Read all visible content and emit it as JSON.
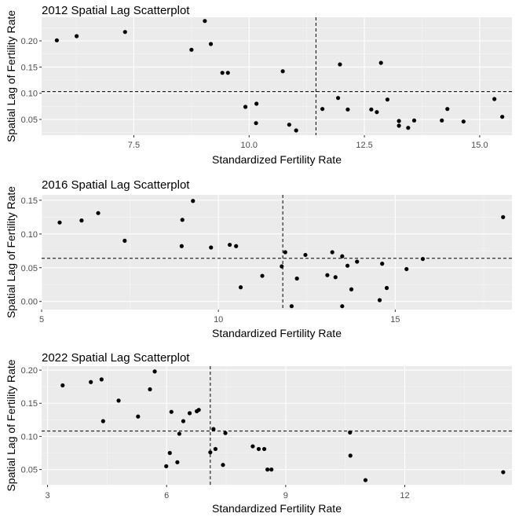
{
  "colors": {
    "panel_bg": "#ebebeb",
    "grid_major": "#ffffff",
    "grid_minor": "#f5f5f5",
    "point": "#000000",
    "ref_line": "#000000",
    "text": "#000000",
    "tick_text": "#4d4d4d"
  },
  "chart_data": [
    {
      "type": "scatter",
      "title": "2012 Spatial Lag Scatterplot",
      "xlabel": "Standardized Fertility Rate",
      "ylabel": "Spatial Lag of Fertility Rate",
      "xlim": [
        5.5,
        15.7
      ],
      "ylim": [
        0.02,
        0.245
      ],
      "xticks": [
        7.5,
        10.0,
        12.5,
        15.0
      ],
      "xtick_labels": [
        "7.5",
        "10.0",
        "12.5",
        "15.0"
      ],
      "yticks": [
        0.05,
        0.1,
        0.15,
        0.2
      ],
      "ytick_labels": [
        "0.05",
        "0.10",
        "0.15",
        "0.20"
      ],
      "vline": 11.45,
      "hline": 0.103,
      "grid": true,
      "points": [
        {
          "x": 5.83,
          "y": 0.201
        },
        {
          "x": 6.26,
          "y": 0.209
        },
        {
          "x": 7.31,
          "y": 0.217
        },
        {
          "x": 8.75,
          "y": 0.183
        },
        {
          "x": 9.04,
          "y": 0.238
        },
        {
          "x": 9.17,
          "y": 0.194
        },
        {
          "x": 9.42,
          "y": 0.139
        },
        {
          "x": 9.54,
          "y": 0.139
        },
        {
          "x": 9.92,
          "y": 0.074
        },
        {
          "x": 10.16,
          "y": 0.08
        },
        {
          "x": 10.15,
          "y": 0.043
        },
        {
          "x": 10.73,
          "y": 0.142
        },
        {
          "x": 10.87,
          "y": 0.04
        },
        {
          "x": 11.02,
          "y": 0.029
        },
        {
          "x": 11.59,
          "y": 0.07
        },
        {
          "x": 11.93,
          "y": 0.091
        },
        {
          "x": 11.97,
          "y": 0.155
        },
        {
          "x": 12.14,
          "y": 0.069
        },
        {
          "x": 12.65,
          "y": 0.069
        },
        {
          "x": 12.77,
          "y": 0.064
        },
        {
          "x": 12.86,
          "y": 0.158
        },
        {
          "x": 13.0,
          "y": 0.088
        },
        {
          "x": 13.25,
          "y": 0.047
        },
        {
          "x": 13.25,
          "y": 0.038
        },
        {
          "x": 13.45,
          "y": 0.034
        },
        {
          "x": 13.58,
          "y": 0.048
        },
        {
          "x": 14.18,
          "y": 0.048
        },
        {
          "x": 14.3,
          "y": 0.07
        },
        {
          "x": 14.65,
          "y": 0.046
        },
        {
          "x": 15.32,
          "y": 0.089
        },
        {
          "x": 15.49,
          "y": 0.055
        }
      ]
    },
    {
      "type": "scatter",
      "title": "2016 Spatial Lag Scatterplot",
      "xlabel": "Standardized Fertility Rate",
      "ylabel": "Spatial Lag of Fertility Rate",
      "xlim": [
        5.0,
        18.3
      ],
      "ylim": [
        -0.012,
        0.158
      ],
      "xticks": [
        5,
        10,
        15
      ],
      "xtick_labels": [
        "5",
        "10",
        "15"
      ],
      "yticks": [
        0.0,
        0.05,
        0.1,
        0.15
      ],
      "ytick_labels": [
        "0.00",
        "0.05",
        "0.10",
        "0.15"
      ],
      "vline": 11.82,
      "hline": 0.064,
      "grid": true,
      "points": [
        {
          "x": 5.51,
          "y": 0.117
        },
        {
          "x": 6.13,
          "y": 0.12
        },
        {
          "x": 6.6,
          "y": 0.131
        },
        {
          "x": 7.35,
          "y": 0.09
        },
        {
          "x": 8.96,
          "y": 0.082
        },
        {
          "x": 8.98,
          "y": 0.121
        },
        {
          "x": 9.28,
          "y": 0.149
        },
        {
          "x": 9.79,
          "y": 0.08
        },
        {
          "x": 10.32,
          "y": 0.084
        },
        {
          "x": 10.5,
          "y": 0.082
        },
        {
          "x": 10.63,
          "y": 0.021
        },
        {
          "x": 11.24,
          "y": 0.038
        },
        {
          "x": 11.79,
          "y": 0.052
        },
        {
          "x": 11.89,
          "y": 0.073
        },
        {
          "x": 12.07,
          "y": -0.007
        },
        {
          "x": 12.22,
          "y": 0.034
        },
        {
          "x": 12.46,
          "y": 0.069
        },
        {
          "x": 13.08,
          "y": 0.039
        },
        {
          "x": 13.22,
          "y": 0.073
        },
        {
          "x": 13.31,
          "y": 0.036
        },
        {
          "x": 13.5,
          "y": 0.067
        },
        {
          "x": 13.5,
          "y": -0.007
        },
        {
          "x": 13.65,
          "y": 0.053
        },
        {
          "x": 13.76,
          "y": 0.018
        },
        {
          "x": 13.92,
          "y": 0.059
        },
        {
          "x": 14.56,
          "y": 0.002
        },
        {
          "x": 14.63,
          "y": 0.056
        },
        {
          "x": 14.76,
          "y": 0.02
        },
        {
          "x": 15.32,
          "y": 0.048
        },
        {
          "x": 15.78,
          "y": 0.063
        },
        {
          "x": 18.05,
          "y": 0.125
        }
      ]
    },
    {
      "type": "scatter",
      "title": "2022 Spatial Lag Scatterplot",
      "xlabel": "Standardized Fertility Rate",
      "ylabel": "Spatial Lag of Fertility Rate",
      "xlim": [
        2.85,
        14.7
      ],
      "ylim": [
        0.027,
        0.206
      ],
      "xticks": [
        3,
        6,
        9,
        12
      ],
      "xtick_labels": [
        "3",
        "6",
        "9",
        "12"
      ],
      "yticks": [
        0.05,
        0.1,
        0.15,
        0.2
      ],
      "ytick_labels": [
        "0.05",
        "0.10",
        "0.15",
        "0.20"
      ],
      "vline": 7.1,
      "hline": 0.108,
      "grid": true,
      "points": [
        {
          "x": 3.38,
          "y": 0.177
        },
        {
          "x": 4.09,
          "y": 0.182
        },
        {
          "x": 4.36,
          "y": 0.186
        },
        {
          "x": 4.4,
          "y": 0.123
        },
        {
          "x": 4.79,
          "y": 0.154
        },
        {
          "x": 5.28,
          "y": 0.13
        },
        {
          "x": 5.58,
          "y": 0.171
        },
        {
          "x": 5.7,
          "y": 0.198
        },
        {
          "x": 5.99,
          "y": 0.055
        },
        {
          "x": 6.08,
          "y": 0.075
        },
        {
          "x": 6.12,
          "y": 0.137
        },
        {
          "x": 6.27,
          "y": 0.061
        },
        {
          "x": 6.32,
          "y": 0.104
        },
        {
          "x": 6.42,
          "y": 0.123
        },
        {
          "x": 6.58,
          "y": 0.135
        },
        {
          "x": 6.76,
          "y": 0.138
        },
        {
          "x": 6.81,
          "y": 0.14
        },
        {
          "x": 7.1,
          "y": 0.076
        },
        {
          "x": 7.18,
          "y": 0.111
        },
        {
          "x": 7.23,
          "y": 0.081
        },
        {
          "x": 7.42,
          "y": 0.057
        },
        {
          "x": 7.48,
          "y": 0.105
        },
        {
          "x": 8.17,
          "y": 0.085
        },
        {
          "x": 8.32,
          "y": 0.081
        },
        {
          "x": 8.46,
          "y": 0.081
        },
        {
          "x": 8.54,
          "y": 0.05
        },
        {
          "x": 8.64,
          "y": 0.05
        },
        {
          "x": 10.62,
          "y": 0.106
        },
        {
          "x": 10.63,
          "y": 0.071
        },
        {
          "x": 11.01,
          "y": 0.034
        },
        {
          "x": 14.48,
          "y": 0.046
        }
      ]
    }
  ]
}
